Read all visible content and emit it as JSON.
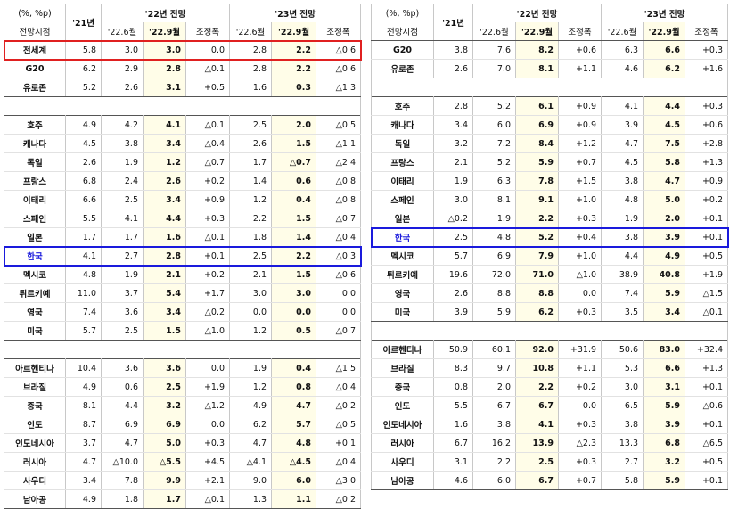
{
  "colors": {
    "highlight_fill": "#fffde8",
    "world_box": "#e02020",
    "korea_box": "#1a1adc",
    "korea_text": "#1a1adc"
  },
  "left": {
    "header": {
      "unit": "(%, %p)",
      "col21": "'21년",
      "g22": "'22년 전망",
      "g23": "'23년 전망",
      "timing": "전망시점",
      "jun22": "'22.6월",
      "sep22": "'22.9월",
      "adj22": "조정폭",
      "jun23": "'22.6월",
      "sep23": "'22.9월",
      "adj23": "조정폭"
    },
    "groups": [
      [
        [
          "전세계",
          "5.8",
          "3.0",
          "3.0",
          "0.0",
          "2.8",
          "2.2",
          "△0.6"
        ],
        [
          "G20",
          "6.2",
          "2.9",
          "2.8",
          "△0.1",
          "2.8",
          "2.2",
          "△0.6"
        ],
        [
          "유로존",
          "5.2",
          "2.6",
          "3.1",
          "+0.5",
          "1.6",
          "0.3",
          "△1.3"
        ]
      ],
      [
        [
          "호주",
          "4.9",
          "4.2",
          "4.1",
          "△0.1",
          "2.5",
          "2.0",
          "△0.5"
        ],
        [
          "캐나다",
          "4.5",
          "3.8",
          "3.4",
          "△0.4",
          "2.6",
          "1.5",
          "△1.1"
        ],
        [
          "독일",
          "2.6",
          "1.9",
          "1.2",
          "△0.7",
          "1.7",
          "△0.7",
          "△2.4"
        ],
        [
          "프랑스",
          "6.8",
          "2.4",
          "2.6",
          "+0.2",
          "1.4",
          "0.6",
          "△0.8"
        ],
        [
          "이태리",
          "6.6",
          "2.5",
          "3.4",
          "+0.9",
          "1.2",
          "0.4",
          "△0.8"
        ],
        [
          "스페인",
          "5.5",
          "4.1",
          "4.4",
          "+0.3",
          "2.2",
          "1.5",
          "△0.7"
        ],
        [
          "일본",
          "1.7",
          "1.7",
          "1.6",
          "△0.1",
          "1.8",
          "1.4",
          "△0.4"
        ],
        [
          "한국",
          "4.1",
          "2.7",
          "2.8",
          "+0.1",
          "2.5",
          "2.2",
          "△0.3"
        ],
        [
          "멕시코",
          "4.8",
          "1.9",
          "2.1",
          "+0.2",
          "2.1",
          "1.5",
          "△0.6"
        ],
        [
          "튀르키예",
          "11.0",
          "3.7",
          "5.4",
          "+1.7",
          "3.0",
          "3.0",
          "0.0"
        ],
        [
          "영국",
          "7.4",
          "3.6",
          "3.4",
          "△0.2",
          "0.0",
          "0.0",
          "0.0"
        ],
        [
          "미국",
          "5.7",
          "2.5",
          "1.5",
          "△1.0",
          "1.2",
          "0.5",
          "△0.7"
        ]
      ],
      [
        [
          "아르헨티나",
          "10.4",
          "3.6",
          "3.6",
          "0.0",
          "1.9",
          "0.4",
          "△1.5"
        ],
        [
          "브라질",
          "4.9",
          "0.6",
          "2.5",
          "+1.9",
          "1.2",
          "0.8",
          "△0.4"
        ],
        [
          "중국",
          "8.1",
          "4.4",
          "3.2",
          "△1.2",
          "4.9",
          "4.7",
          "△0.2"
        ],
        [
          "인도",
          "8.7",
          "6.9",
          "6.9",
          "0.0",
          "6.2",
          "5.7",
          "△0.5"
        ],
        [
          "인도네시아",
          "3.7",
          "4.7",
          "5.0",
          "+0.3",
          "4.7",
          "4.8",
          "+0.1"
        ],
        [
          "러시아",
          "4.7",
          "△10.0",
          "△5.5",
          "+4.5",
          "△4.1",
          "△4.5",
          "△0.4"
        ],
        [
          "사우디",
          "3.4",
          "7.8",
          "9.9",
          "+2.1",
          "9.0",
          "6.0",
          "△3.0"
        ],
        [
          "남아공",
          "4.9",
          "1.8",
          "1.7",
          "△0.1",
          "1.3",
          "1.1",
          "△0.2"
        ]
      ]
    ]
  },
  "right": {
    "header": {
      "unit": "(%, %p)",
      "col21": "'21년",
      "g22": "'22년 전망",
      "g23": "'23년 전망",
      "timing": "전망시점",
      "jun22": "'22.6월",
      "sep22": "'22.9월",
      "adj22": "조정폭",
      "jun23": "'22.6월",
      "sep23": "'22.9월",
      "adj23": "조정폭"
    },
    "groups": [
      [
        [
          "G20",
          "3.8",
          "7.6",
          "8.2",
          "+0.6",
          "6.3",
          "6.6",
          "+0.3"
        ],
        [
          "유로존",
          "2.6",
          "7.0",
          "8.1",
          "+1.1",
          "4.6",
          "6.2",
          "+1.6"
        ]
      ],
      [
        [
          "호주",
          "2.8",
          "5.2",
          "6.1",
          "+0.9",
          "4.1",
          "4.4",
          "+0.3"
        ],
        [
          "캐나다",
          "3.4",
          "6.0",
          "6.9",
          "+0.9",
          "3.9",
          "4.5",
          "+0.6"
        ],
        [
          "독일",
          "3.2",
          "7.2",
          "8.4",
          "+1.2",
          "4.7",
          "7.5",
          "+2.8"
        ],
        [
          "프랑스",
          "2.1",
          "5.2",
          "5.9",
          "+0.7",
          "4.5",
          "5.8",
          "+1.3"
        ],
        [
          "이태리",
          "1.9",
          "6.3",
          "7.8",
          "+1.5",
          "3.8",
          "4.7",
          "+0.9"
        ],
        [
          "스페인",
          "3.0",
          "8.1",
          "9.1",
          "+1.0",
          "4.8",
          "5.0",
          "+0.2"
        ],
        [
          "일본",
          "△0.2",
          "1.9",
          "2.2",
          "+0.3",
          "1.9",
          "2.0",
          "+0.1"
        ],
        [
          "한국",
          "2.5",
          "4.8",
          "5.2",
          "+0.4",
          "3.8",
          "3.9",
          "+0.1"
        ],
        [
          "멕시코",
          "5.7",
          "6.9",
          "7.9",
          "+1.0",
          "4.4",
          "4.9",
          "+0.5"
        ],
        [
          "튀르키예",
          "19.6",
          "72.0",
          "71.0",
          "△1.0",
          "38.9",
          "40.8",
          "+1.9"
        ],
        [
          "영국",
          "2.6",
          "8.8",
          "8.8",
          "0.0",
          "7.4",
          "5.9",
          "△1.5"
        ],
        [
          "미국",
          "3.9",
          "5.9",
          "6.2",
          "+0.3",
          "3.5",
          "3.4",
          "△0.1"
        ]
      ],
      [
        [
          "아르헨티나",
          "50.9",
          "60.1",
          "92.0",
          "+31.9",
          "50.6",
          "83.0",
          "+32.4"
        ],
        [
          "브라질",
          "8.3",
          "9.7",
          "10.8",
          "+1.1",
          "5.3",
          "6.6",
          "+1.3"
        ],
        [
          "중국",
          "0.8",
          "2.0",
          "2.2",
          "+0.2",
          "3.0",
          "3.1",
          "+0.1"
        ],
        [
          "인도",
          "5.5",
          "6.7",
          "6.7",
          "0.0",
          "6.5",
          "5.9",
          "△0.6"
        ],
        [
          "인도네시아",
          "1.6",
          "3.8",
          "4.1",
          "+0.3",
          "3.8",
          "3.9",
          "+0.1"
        ],
        [
          "러시아",
          "6.7",
          "16.2",
          "13.9",
          "△2.3",
          "13.3",
          "6.8",
          "△6.5"
        ],
        [
          "사우디",
          "3.1",
          "2.2",
          "2.5",
          "+0.3",
          "2.7",
          "3.2",
          "+0.5"
        ],
        [
          "남아공",
          "4.6",
          "6.0",
          "6.7",
          "+0.7",
          "5.8",
          "5.9",
          "+0.1"
        ]
      ]
    ]
  }
}
